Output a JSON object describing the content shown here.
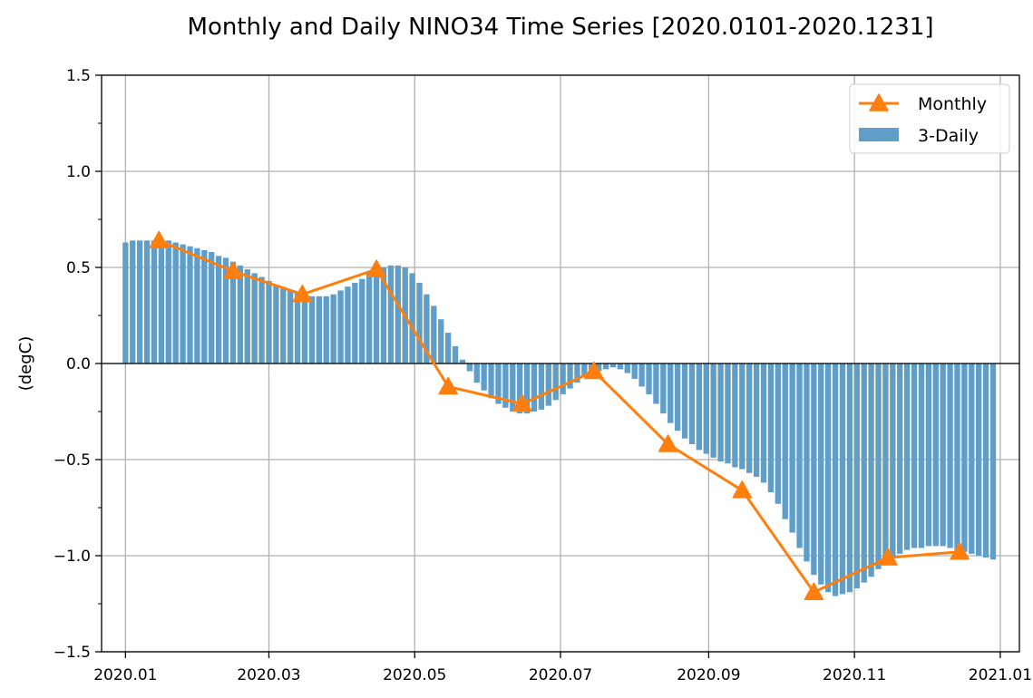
{
  "chart_data": {
    "type": "bar+line",
    "title": "Monthly and Daily NINO34 Time Series [2020.0101-2020.1231]",
    "xlabel": "",
    "ylabel": "(degC)",
    "ylim": [
      -1.5,
      1.5
    ],
    "xlim": [
      "2019-12-22",
      "2021-01-09"
    ],
    "yticks": [
      -1.5,
      -1.0,
      -0.5,
      0.0,
      0.5,
      1.0,
      1.5
    ],
    "ytick_labels": [
      "−1.5",
      "−1.0",
      "−0.5",
      "0.0",
      "0.5",
      "1.0",
      "1.5"
    ],
    "xticks": [
      "2020-01-01",
      "2020-03-01",
      "2020-05-01",
      "2020-07-01",
      "2020-09-01",
      "2020-11-01",
      "2021-01-01"
    ],
    "xtick_labels": [
      "2020.01",
      "2020.03",
      "2020.05",
      "2020.07",
      "2020.09",
      "2020.11",
      "2021.01"
    ],
    "grid": true,
    "zero_line": true,
    "legend": {
      "placement": "top-right",
      "entries": [
        "Monthly",
        "3-Daily"
      ]
    },
    "colors": {
      "bars": "#5f9ec9",
      "line": "#ff7f0e"
    },
    "series": [
      {
        "name": "3-Daily",
        "type": "bar",
        "x_start": "2020-01-01",
        "x_step_days": 3,
        "values": [
          0.63,
          0.64,
          0.64,
          0.64,
          0.64,
          0.64,
          0.64,
          0.63,
          0.62,
          0.61,
          0.6,
          0.59,
          0.58,
          0.56,
          0.55,
          0.53,
          0.51,
          0.49,
          0.47,
          0.45,
          0.43,
          0.41,
          0.39,
          0.38,
          0.37,
          0.36,
          0.35,
          0.35,
          0.35,
          0.36,
          0.38,
          0.4,
          0.42,
          0.44,
          0.47,
          0.49,
          0.5,
          0.51,
          0.51,
          0.5,
          0.47,
          0.42,
          0.36,
          0.3,
          0.23,
          0.16,
          0.09,
          0.02,
          -0.04,
          -0.1,
          -0.14,
          -0.18,
          -0.21,
          -0.23,
          -0.25,
          -0.26,
          -0.26,
          -0.25,
          -0.24,
          -0.22,
          -0.19,
          -0.16,
          -0.13,
          -0.1,
          -0.07,
          -0.05,
          -0.04,
          -0.03,
          -0.02,
          -0.03,
          -0.05,
          -0.08,
          -0.12,
          -0.16,
          -0.21,
          -0.26,
          -0.31,
          -0.35,
          -0.39,
          -0.42,
          -0.45,
          -0.47,
          -0.49,
          -0.51,
          -0.52,
          -0.54,
          -0.55,
          -0.57,
          -0.59,
          -0.62,
          -0.67,
          -0.73,
          -0.81,
          -0.88,
          -0.96,
          -1.03,
          -1.1,
          -1.15,
          -1.19,
          -1.21,
          -1.2,
          -1.19,
          -1.17,
          -1.14,
          -1.11,
          -1.07,
          -1.04,
          -1.01,
          -0.99,
          -0.97,
          -0.96,
          -0.96,
          -0.95,
          -0.95,
          -0.95,
          -0.96,
          -0.97,
          -0.98,
          -0.99,
          -1.0,
          -1.01,
          -1.02
        ]
      },
      {
        "name": "Monthly",
        "type": "line",
        "marker": "triangle",
        "x": [
          "2020-01-15",
          "2020-02-15",
          "2020-03-15",
          "2020-04-15",
          "2020-05-15",
          "2020-06-15",
          "2020-07-15",
          "2020-08-15",
          "2020-09-15",
          "2020-10-15",
          "2020-11-15",
          "2020-12-15"
        ],
        "values": [
          0.64,
          0.48,
          0.36,
          0.49,
          -0.12,
          -0.21,
          -0.04,
          -0.42,
          -0.66,
          -1.19,
          -1.01,
          -0.98
        ]
      }
    ]
  }
}
